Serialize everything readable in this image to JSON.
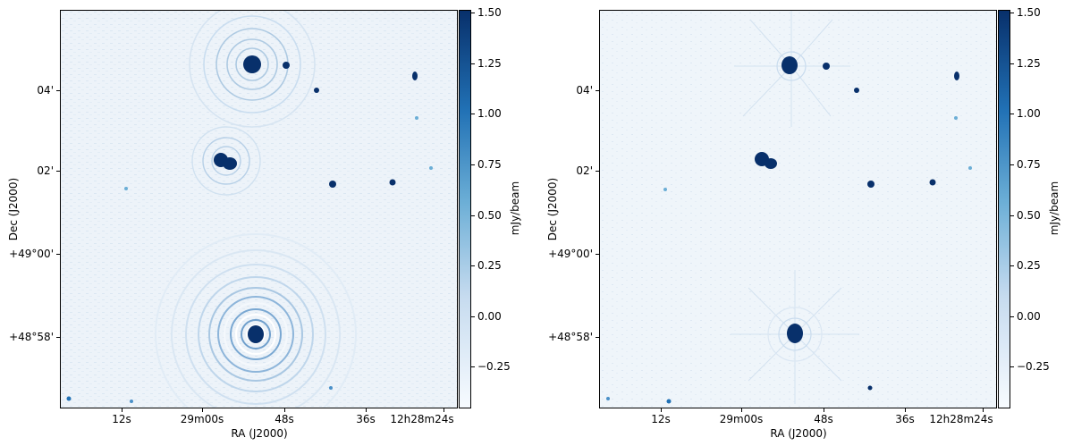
{
  "colormap": [
    "#08306b",
    "#2171b5",
    "#6baed6",
    "#c6dbef",
    "#f7fbff"
  ],
  "panels": [
    {
      "x_axis": {
        "title": "RA (J2000)",
        "ticks": [
          "12s",
          "29m00s",
          "48s",
          "36s",
          "12h28m24s"
        ]
      },
      "y_axis": {
        "title": "Dec (J2000)",
        "ticks": [
          "04'",
          "02'",
          "+49°00'",
          "+48°58'"
        ]
      },
      "colorbar": {
        "title": "mJy/beam",
        "ticks": [
          "1.50",
          "1.25",
          "1.00",
          "0.75",
          "0.50",
          "0.25",
          "0.00",
          "−0.25"
        ]
      }
    },
    {
      "x_axis": {
        "title": "RA (J2000)",
        "ticks": [
          "12s",
          "29m00s",
          "48s",
          "36s",
          "12h28m24s"
        ]
      },
      "y_axis": {
        "title": "Dec (J2000)",
        "ticks": [
          "04'",
          "02'",
          "+49°00'",
          "+48°58'"
        ]
      },
      "colorbar": {
        "title": "mJy/beam",
        "ticks": [
          "1.50",
          "1.25",
          "1.00",
          "0.75",
          "0.50",
          "0.25",
          "0.00",
          "−0.25"
        ]
      }
    }
  ]
}
